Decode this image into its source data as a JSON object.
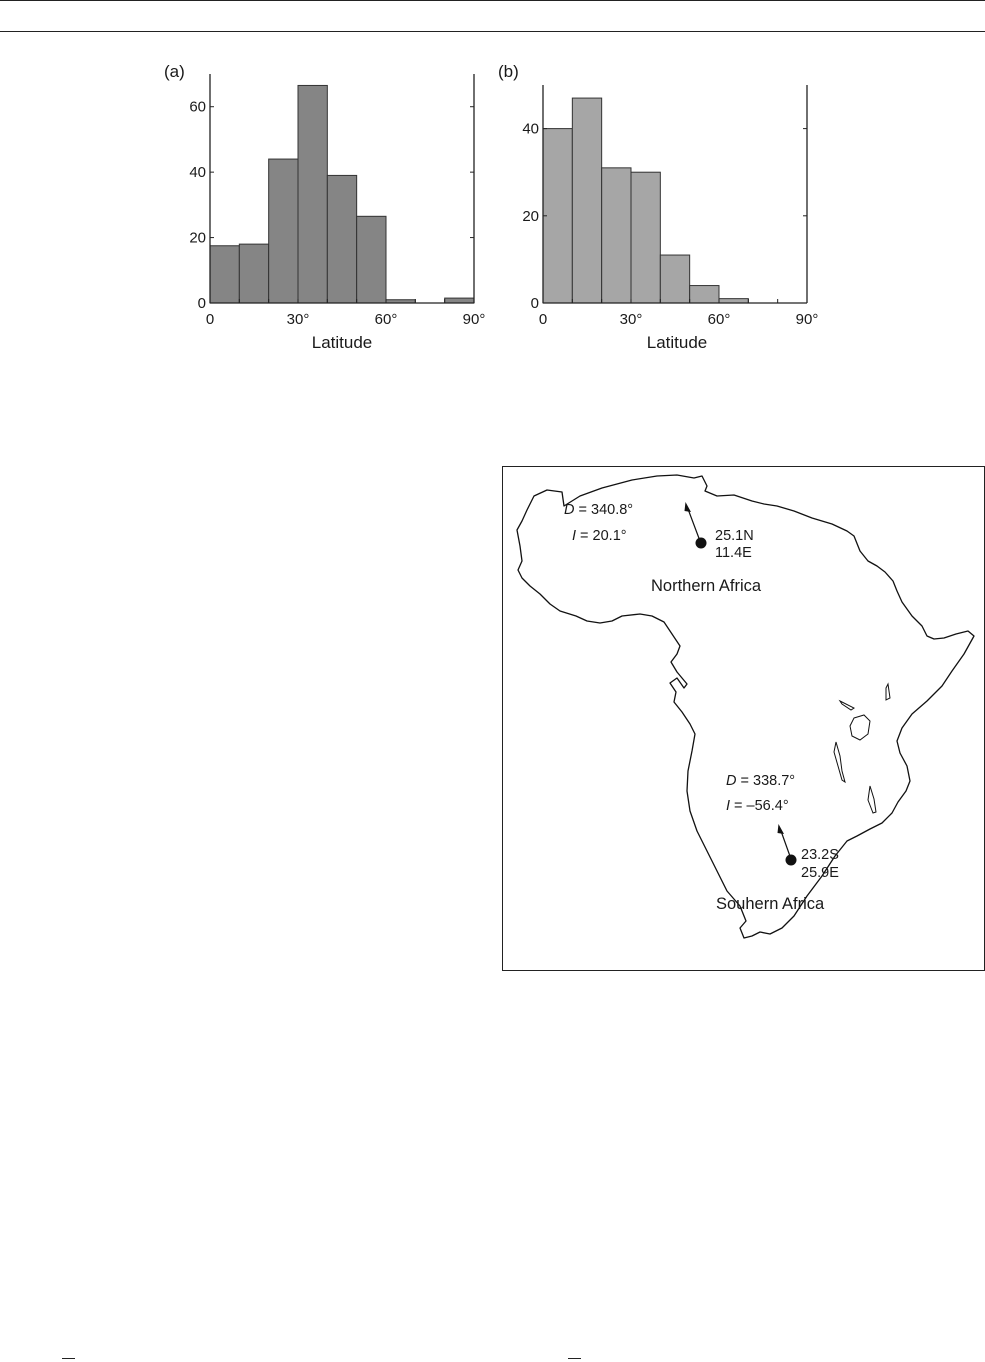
{
  "charts": [
    {
      "panel_letter": "(a)",
      "bin_edges": [
        0,
        10,
        20,
        30,
        40,
        50,
        60,
        70,
        80,
        90
      ],
      "counts": [
        17.5,
        18,
        44,
        66.5,
        39,
        26.5,
        1,
        0,
        1.5
      ],
      "y_ticks": [
        "0",
        "20",
        "40",
        "60"
      ],
      "x_ticks": [
        "0",
        "30°",
        "60°",
        "90°"
      ],
      "xlabel": "Latitude",
      "bar_color": "#858585"
    },
    {
      "panel_letter": "(b)",
      "bin_edges": [
        0,
        10,
        20,
        30,
        40,
        50,
        60,
        70,
        80,
        90
      ],
      "counts": [
        40,
        47,
        31,
        30,
        11,
        4,
        1,
        0,
        0
      ],
      "y_ticks": [
        "0",
        "20",
        "40"
      ],
      "x_ticks": [
        "0",
        "30°",
        "60°",
        "90°"
      ],
      "xlabel": "Latitude",
      "bar_color": "#a6a6a6"
    }
  ],
  "chart_data": [
    {
      "type": "bar",
      "panel": "(a)",
      "categories": [
        "0–10",
        "10–20",
        "20–30",
        "30–40",
        "40–50",
        "50–60",
        "60–70",
        "70–80",
        "80–90"
      ],
      "values": [
        17.5,
        18,
        44,
        66.5,
        39,
        26.5,
        1,
        0,
        1.5
      ],
      "xlabel": "Latitude",
      "ylabel": "",
      "xlim": [
        0,
        90
      ],
      "ylim": [
        0,
        70
      ],
      "x_tick_labels": [
        "0",
        "30°",
        "60°",
        "90°"
      ],
      "y_tick_labels": [
        "0",
        "20",
        "40",
        "60"
      ],
      "grid": false,
      "legend": "none"
    },
    {
      "type": "bar",
      "panel": "(b)",
      "categories": [
        "0–10",
        "10–20",
        "20–30",
        "30–40",
        "40–50",
        "50–60",
        "60–70",
        "70–80",
        "80–90"
      ],
      "values": [
        40,
        47,
        31,
        30,
        11,
        4,
        1,
        0,
        0
      ],
      "xlabel": "Latitude",
      "ylabel": "",
      "xlim": [
        0,
        90
      ],
      "ylim": [
        0,
        50
      ],
      "x_tick_labels": [
        "0",
        "30°",
        "60°",
        "90°"
      ],
      "y_tick_labels": [
        "0",
        "20",
        "40"
      ],
      "grid": false,
      "legend": "none"
    }
  ],
  "map": {
    "north": {
      "declination_symbol": "D",
      "declination_value": " = 340.8°",
      "inclination_symbol": "I",
      "inclination_value": " = 20.1°",
      "site_lat": "25.1N",
      "site_lon": "11.4E",
      "region": "Northern Africa"
    },
    "south": {
      "declination_symbol": "D",
      "declination_value": " = 338.7°",
      "inclination_symbol": "I",
      "inclination_value": " = –56.4°",
      "site_lat": "23.2S",
      "site_lon": "25.9E",
      "region": "Souhern Africa"
    }
  }
}
